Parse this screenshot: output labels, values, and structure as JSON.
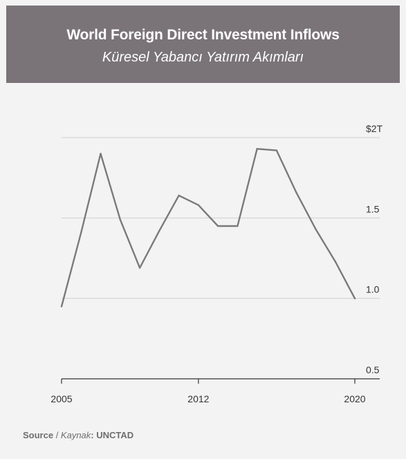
{
  "header": {
    "title": "World Foreign Direct Investment Inflows",
    "subtitle": "Küresel Yabancı Yatırım Akımları"
  },
  "source": {
    "label": "Source",
    "separator": " / ",
    "label_alt": "Kaynak",
    "colon": ": ",
    "value": "UNCTAD"
  },
  "chart_data": {
    "type": "line",
    "title": "World Foreign Direct Investment Inflows",
    "subtitle": "Küresel Yabancı Yatırım Akımları",
    "xlabel": "",
    "ylabel": "",
    "x": [
      2005,
      2006,
      2007,
      2008,
      2009,
      2010,
      2011,
      2012,
      2013,
      2014,
      2015,
      2016,
      2017,
      2018,
      2019,
      2020
    ],
    "series": [
      {
        "values": [
          0.95,
          1.41,
          1.9,
          1.49,
          1.19,
          1.42,
          1.64,
          1.58,
          1.45,
          1.45,
          1.93,
          1.92,
          1.66,
          1.43,
          1.23,
          1.0
        ]
      }
    ],
    "y_ticks": [
      {
        "value": 2.0,
        "label": "$2T"
      },
      {
        "value": 1.5,
        "label": "1.5"
      },
      {
        "value": 1.0,
        "label": "1.0"
      },
      {
        "value": 0.5,
        "label": "0.5"
      }
    ],
    "x_ticks": [
      {
        "value": 2005,
        "label": "2005"
      },
      {
        "value": 2012,
        "label": "2012"
      },
      {
        "value": 2020,
        "label": "2020"
      }
    ],
    "ylim": [
      0.5,
      2.0
    ],
    "xlim": [
      2005,
      2020
    ],
    "grid": true,
    "colors": {
      "line": "#7a7a7a",
      "grid": "#cfcfcf",
      "axis": "#333333"
    }
  }
}
